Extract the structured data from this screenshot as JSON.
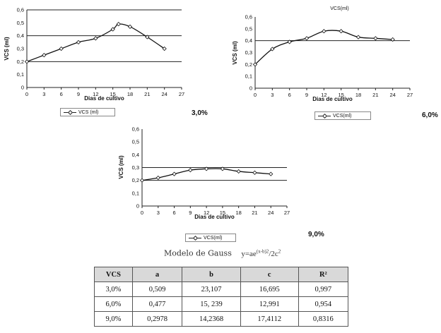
{
  "chart_data": [
    {
      "type": "line",
      "title": "",
      "xlabel": "Dias de cultivo",
      "ylabel": "VCS (ml)",
      "xlim": [
        0,
        27
      ],
      "ylim": [
        0,
        0.6
      ],
      "xticks": [
        "0",
        "3",
        "6",
        "9",
        "12",
        "15",
        "18",
        "21",
        "24",
        "27"
      ],
      "yticks": [
        "0",
        "0,1",
        "0,2",
        "0,3",
        "0,4",
        "0,5",
        "0,6"
      ],
      "grid": "horizontal at 0.2, 0.4, 0.6",
      "series": [
        {
          "name": "VCS (ml)",
          "x": [
            0,
            3,
            6,
            9,
            12,
            15,
            16,
            18,
            21,
            24
          ],
          "values": [
            0.2,
            0.25,
            0.3,
            0.35,
            0.38,
            0.45,
            0.49,
            0.47,
            0.39,
            0.3
          ]
        }
      ],
      "label": "3,0%"
    },
    {
      "type": "line",
      "title": "VCS(ml)",
      "xlabel": "Dias de cultivo",
      "ylabel": "VCS (ml)",
      "xlim": [
        0,
        27
      ],
      "ylim": [
        0,
        0.6
      ],
      "xticks": [
        "0",
        "3",
        "6",
        "9",
        "12",
        "15",
        "18",
        "21",
        "24",
        "27"
      ],
      "yticks": [
        "0",
        "0,1",
        "0,2",
        "0,3",
        "0,4",
        "0,5",
        "0,6"
      ],
      "grid": "horizontal at 0.4",
      "series": [
        {
          "name": "VCS(ml)",
          "x": [
            0,
            3,
            6,
            9,
            12,
            15,
            18,
            21,
            24
          ],
          "values": [
            0.2,
            0.33,
            0.39,
            0.42,
            0.48,
            0.48,
            0.43,
            0.42,
            0.41
          ]
        }
      ],
      "label": "6,0%"
    },
    {
      "type": "line",
      "title": "",
      "xlabel": "Dias de cultivo",
      "ylabel": "VCS (ml)",
      "xlim": [
        0,
        27
      ],
      "ylim": [
        0,
        0.6
      ],
      "xticks": [
        "0",
        "3",
        "6",
        "9",
        "12",
        "15",
        "18",
        "21",
        "24",
        "27"
      ],
      "yticks": [
        "0",
        "0,1",
        "0,2",
        "0,3",
        "0,4",
        "0,5",
        "0,6"
      ],
      "grid": "horizontal at 0.2, 0.3",
      "series": [
        {
          "name": "VCS(ml)",
          "x": [
            0,
            3,
            6,
            9,
            12,
            15,
            18,
            21,
            24
          ],
          "values": [
            0.2,
            0.22,
            0.25,
            0.28,
            0.29,
            0.29,
            0.27,
            0.26,
            0.25
          ]
        }
      ],
      "label": "9,0%"
    }
  ],
  "gauss": {
    "title": "Modelo de Gauss",
    "eq_main": "y=ae",
    "eq_exp": "(x-b)2",
    "eq_tail": "/2c",
    "eq_tail_exp": "2"
  },
  "table": {
    "headers": [
      "VCS",
      "a",
      "b",
      "c",
      "R²"
    ],
    "rows": [
      [
        "3,0%",
        "0,509",
        "23,107",
        "16,695",
        "0,997"
      ],
      [
        "6,0%",
        "0,477",
        "15, 239",
        "12,991",
        "0,954"
      ],
      [
        "9,0%",
        "0,2978",
        "14,2368",
        "17,4112",
        "0,8316"
      ]
    ]
  }
}
